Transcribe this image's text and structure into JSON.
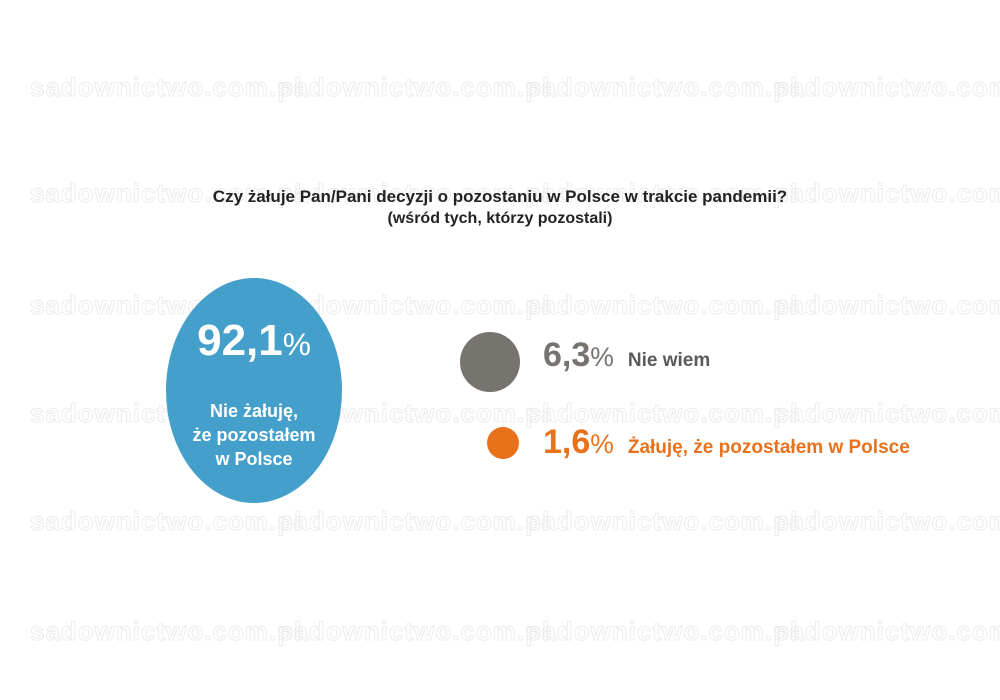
{
  "chart_data": {
    "type": "bubble",
    "title": "Czy żałuje Pan/Pani decyzji o pozostaniu w Polsce w trakcie pandemii?",
    "subtitle": "(wśród tych, którzy pozostali)",
    "unit": "%",
    "items": [
      {
        "value": "92,1",
        "label_lines": [
          "Nie żałuję,",
          "że pozostałem",
          "w Polsce"
        ],
        "color": "#44a0cb",
        "numeric": 92.1
      },
      {
        "value": "6,3",
        "label": "Nie wiem",
        "color": "#77736f",
        "numeric": 6.3
      },
      {
        "value": "1,6",
        "label": "Żałuję, że pozostałem w Polsce",
        "color": "#e8721c",
        "numeric": 1.6
      }
    ]
  },
  "colors": {
    "text_dark": "#222222",
    "label_gray": "#5a5a5a"
  },
  "watermark": {
    "text": "sadownictwo.com.pl"
  }
}
